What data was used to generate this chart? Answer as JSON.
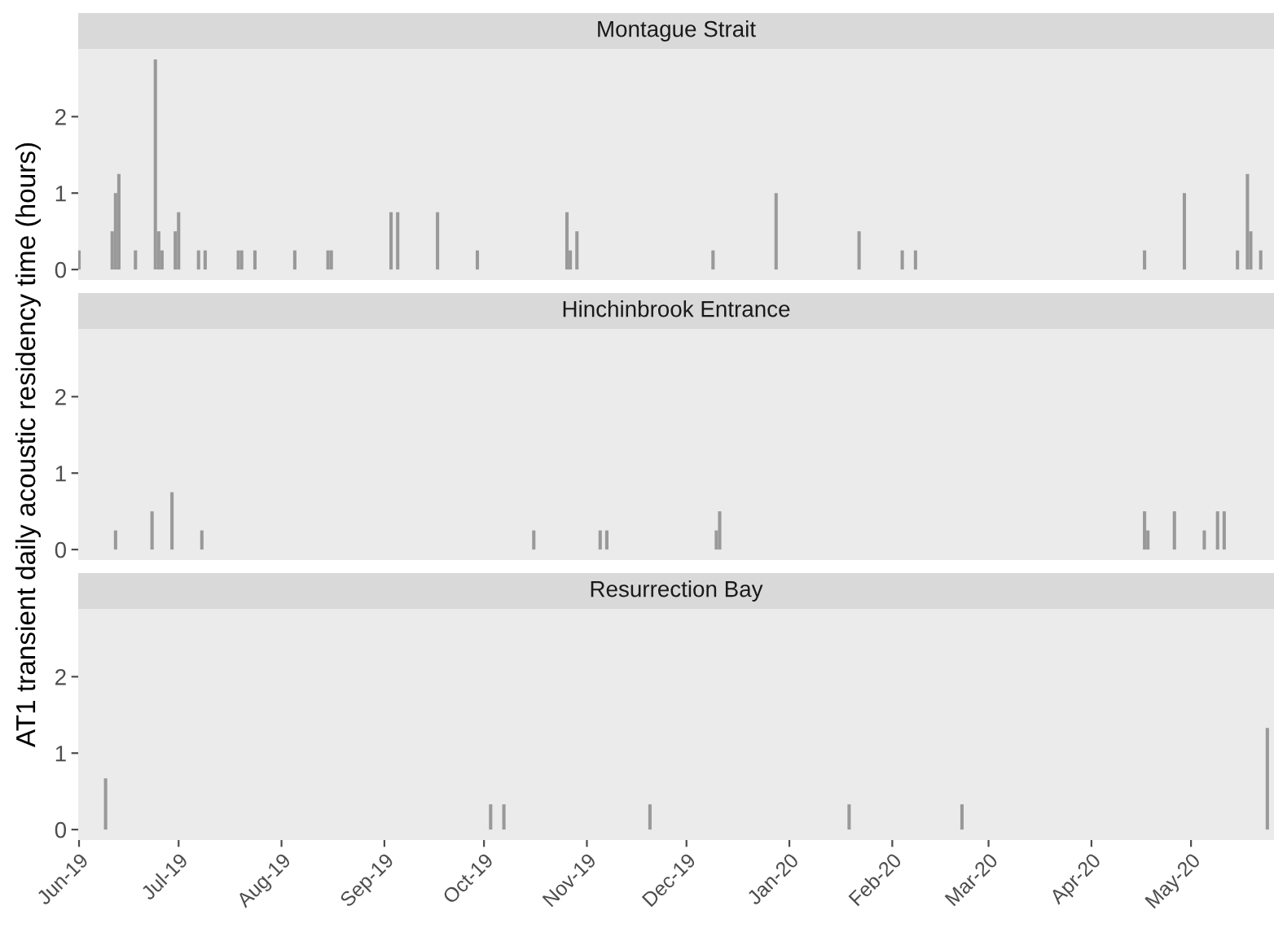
{
  "chart_data": [
    {
      "type": "bar",
      "title": "Montague Strait",
      "color": "#999999",
      "tick_labels": "y",
      "grid": false,
      "x": [
        "2019-06-01",
        "2019-06-11",
        "2019-06-12",
        "2019-06-13",
        "2019-06-18",
        "2019-06-24",
        "2019-06-25",
        "2019-06-26",
        "2019-06-30",
        "2019-07-01",
        "2019-07-07",
        "2019-07-09",
        "2019-07-19",
        "2019-07-20",
        "2019-07-24",
        "2019-08-05",
        "2019-08-15",
        "2019-08-16",
        "2019-09-03",
        "2019-09-05",
        "2019-09-17",
        "2019-09-29",
        "2019-10-26",
        "2019-10-27",
        "2019-10-29",
        "2019-12-09",
        "2019-12-28",
        "2020-01-22",
        "2020-02-04",
        "2020-02-08",
        "2020-04-17",
        "2020-04-29",
        "2020-05-15",
        "2020-05-18",
        "2020-05-19",
        "2020-05-22"
      ],
      "values": [
        0.25,
        0.5,
        1.0,
        1.25,
        0.25,
        2.75,
        0.5,
        0.25,
        0.5,
        0.75,
        0.25,
        0.25,
        0.25,
        0.25,
        0.25,
        0.25,
        0.25,
        0.25,
        0.75,
        0.75,
        0.75,
        0.25,
        0.75,
        0.25,
        0.5,
        0.25,
        1.0,
        0.5,
        0.25,
        0.25,
        0.25,
        1.0,
        0.25,
        1.25,
        0.5,
        0.25
      ],
      "xlim": [
        "2019-05-31T18:00",
        "2020-05-26"
      ],
      "ylim": [
        -0.1375,
        2.8875
      ],
      "yticks": [
        0,
        1,
        2
      ]
    },
    {
      "type": "bar",
      "title": "Hinchinbrook Entrance",
      "color": "#999999",
      "tick_labels": "y",
      "grid": false,
      "ylabel": "AT1 transient daily acoustic residency time (hours)",
      "x": [
        "2019-06-12",
        "2019-06-23",
        "2019-06-29",
        "2019-07-08",
        "2019-10-16",
        "2019-11-05",
        "2019-11-07",
        "2019-12-10",
        "2019-12-11",
        "2020-04-17",
        "2020-04-18",
        "2020-04-26",
        "2020-05-05",
        "2020-05-09",
        "2020-05-11"
      ],
      "values": [
        0.25,
        0.5,
        0.75,
        0.25,
        0.25,
        0.25,
        0.25,
        0.25,
        0.5,
        0.5,
        0.25,
        0.5,
        0.25,
        0.5,
        0.5
      ],
      "xlim": [
        "2019-05-31T18:00",
        "2020-05-26"
      ],
      "ylim": [
        -0.1375,
        2.8875
      ],
      "yticks": [
        0,
        1,
        2
      ]
    },
    {
      "type": "bar",
      "title": "Resurrection Bay",
      "color": "#999999",
      "grid": false,
      "x": [
        "2019-06-09",
        "2019-10-03",
        "2019-10-07",
        "2019-11-20",
        "2020-01-19",
        "2020-02-22",
        "2020-05-24"
      ],
      "values": [
        0.67,
        0.33,
        0.33,
        0.33,
        0.33,
        0.33,
        1.33
      ],
      "xlim": [
        "2019-05-31T18:00",
        "2020-05-26"
      ],
      "ylim": [
        -0.1375,
        2.8875
      ],
      "yticks": [
        0,
        1,
        2
      ],
      "xticks": [
        {
          "value": "2019-06-01",
          "label": "Jun-19"
        },
        {
          "value": "2019-07-01",
          "label": "Jul-19"
        },
        {
          "value": "2019-08-01",
          "label": "Aug-19"
        },
        {
          "value": "2019-09-01",
          "label": "Sep-19"
        },
        {
          "value": "2019-10-01",
          "label": "Oct-19"
        },
        {
          "value": "2019-11-01",
          "label": "Nov-19"
        },
        {
          "value": "2019-12-01",
          "label": "Dec-19"
        },
        {
          "value": "2020-01-01",
          "label": "Jan-20"
        },
        {
          "value": "2020-02-01",
          "label": "Feb-20"
        },
        {
          "value": "2020-03-01",
          "label": "Mar-20"
        },
        {
          "value": "2020-04-01",
          "label": "Apr-20"
        },
        {
          "value": "2020-05-01",
          "label": "May-20"
        }
      ]
    }
  ]
}
